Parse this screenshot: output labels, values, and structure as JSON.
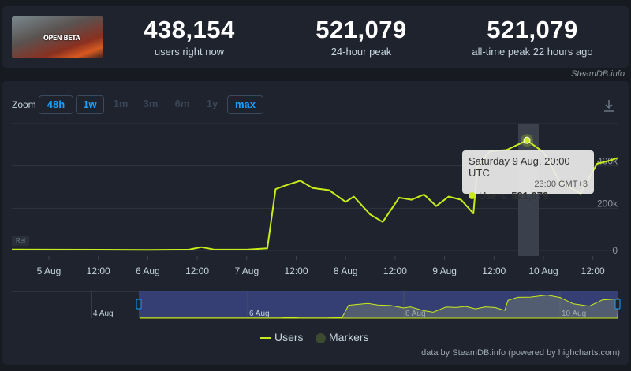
{
  "header": {
    "game_thumbnail_text": "OPEN BETA",
    "stats": [
      {
        "value": "438,154",
        "label": "users right now"
      },
      {
        "value": "521,079",
        "label": "24-hour peak"
      },
      {
        "value": "521,079",
        "label": "all-time peak 22 hours ago"
      }
    ]
  },
  "credit": "SteamDB.info",
  "zoom": {
    "label": "Zoom",
    "options": [
      {
        "label": "48h",
        "active": true
      },
      {
        "label": "1w",
        "active": true
      },
      {
        "label": "1m",
        "active": false
      },
      {
        "label": "3m",
        "active": false
      },
      {
        "label": "6m",
        "active": false
      },
      {
        "label": "1y",
        "active": false
      },
      {
        "label": "max",
        "active": true
      }
    ]
  },
  "rel_badge": "Rel",
  "tooltip": {
    "title": "Saturday 9 Aug, 20:00 UTC",
    "local": "23:00 GMT+3",
    "series": "Users:",
    "value": "521,079"
  },
  "legend": {
    "users": "Users",
    "markers": "Markers"
  },
  "footer": "data by SteamDB.info (powered by highcharts.com)",
  "colors": {
    "line": "#c9ec19",
    "accent": "#1a9fff",
    "navigator": "#3a4480",
    "markers": "#3c4a30"
  },
  "chart_data": {
    "type": "line",
    "series": [
      {
        "name": "Users",
        "points": [
          [
            "4 Aug 15:00",
            5000
          ],
          [
            "5 Aug 00:00",
            4000
          ],
          [
            "6 Aug 00:00",
            3000
          ],
          [
            "6 Aug 10:00",
            4000
          ],
          [
            "6 Aug 13:00",
            16000
          ],
          [
            "6 Aug 16:00",
            5000
          ],
          [
            "7 Aug 00:00",
            4000
          ],
          [
            "7 Aug 05:00",
            10000
          ],
          [
            "7 Aug 07:00",
            290000
          ],
          [
            "7 Aug 09:00",
            305000
          ],
          [
            "7 Aug 13:00",
            330000
          ],
          [
            "7 Aug 16:00",
            295000
          ],
          [
            "7 Aug 20:00",
            285000
          ],
          [
            "8 Aug 00:00",
            230000
          ],
          [
            "8 Aug 02:00",
            255000
          ],
          [
            "8 Aug 06:00",
            170000
          ],
          [
            "8 Aug 09:00",
            135000
          ],
          [
            "8 Aug 13:00",
            250000
          ],
          [
            "8 Aug 16:00",
            240000
          ],
          [
            "8 Aug 19:00",
            265000
          ],
          [
            "8 Aug 22:00",
            210000
          ],
          [
            "9 Aug 01:00",
            255000
          ],
          [
            "9 Aug 04:00",
            240000
          ],
          [
            "9 Aug 07:00",
            175000
          ],
          [
            "9 Aug 08:00",
            400000
          ],
          [
            "9 Aug 11:00",
            470000
          ],
          [
            "9 Aug 15:00",
            475000
          ],
          [
            "9 Aug 20:00",
            521079
          ],
          [
            "10 Aug 00:00",
            465000
          ],
          [
            "10 Aug 04:00",
            325000
          ],
          [
            "10 Aug 09:00",
            270000
          ],
          [
            "10 Aug 13:00",
            410000
          ],
          [
            "10 Aug 16:00",
            425000
          ],
          [
            "10 Aug 18:00",
            438154
          ]
        ]
      }
    ],
    "x_ticks": [
      "5 Aug",
      "12:00",
      "6 Aug",
      "12:00",
      "7 Aug",
      "12:00",
      "8 Aug",
      "12:00",
      "9 Aug",
      "12:00",
      "10 Aug",
      "12:00"
    ],
    "y_ticks": [
      "0",
      "200k",
      "400k"
    ],
    "ylim": [
      0,
      600000
    ],
    "navigator_ticks": [
      "4 Aug",
      "6 Aug",
      "8 Aug",
      "10 Aug"
    ],
    "highlighted_point": "9 Aug 20:00",
    "grid": true,
    "legend": "bottom"
  }
}
